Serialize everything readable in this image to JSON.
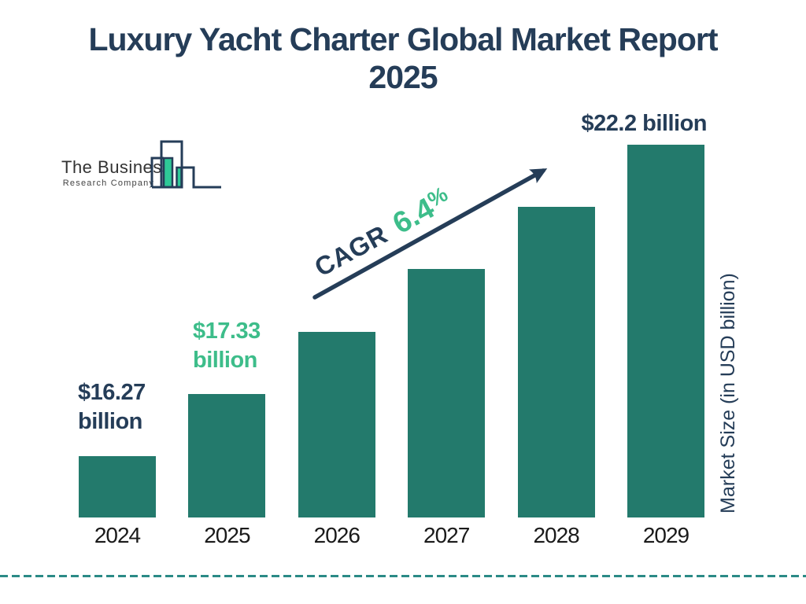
{
  "header": {
    "title_line1": "Luxury Yacht Charter Global Market Report",
    "title_line2": "2025"
  },
  "logo": {
    "name_line1": "The Business",
    "name_line2": "Research Company",
    "glyph": "bar-chart-logo-icon"
  },
  "colors": {
    "navy": "#253d58",
    "green": "#3dbd8a",
    "bar": "#237a6c",
    "logoteal": "#2ec997",
    "dashed": "#2b8a86",
    "year": "#1a1a1a"
  },
  "cagr": {
    "label": "CAGR",
    "value": "6.4",
    "unit": "%"
  },
  "y_axis_label": "Market Size (in USD billion)",
  "chart_data": {
    "type": "bar",
    "title": "Luxury Yacht Charter Global Market Report 2025",
    "categories": [
      "2024",
      "2025",
      "2026",
      "2027",
      "2028",
      "2029"
    ],
    "values": [
      16.27,
      17.33,
      18.44,
      19.62,
      20.88,
      22.2
    ],
    "unit": "USD billion",
    "ylabel": "Market Size (in USD billion)",
    "cagr_percent": 6.4,
    "legend": "none",
    "grid": false,
    "annotations": [
      {
        "category": "2024",
        "lines": [
          "$16.27",
          "billion"
        ],
        "color_role": "navy"
      },
      {
        "category": "2025",
        "lines": [
          "$17.33",
          "billion"
        ],
        "color_role": "green"
      },
      {
        "category": "2029",
        "lines": [
          "$22.2 billion"
        ],
        "color_role": "navy"
      }
    ]
  }
}
